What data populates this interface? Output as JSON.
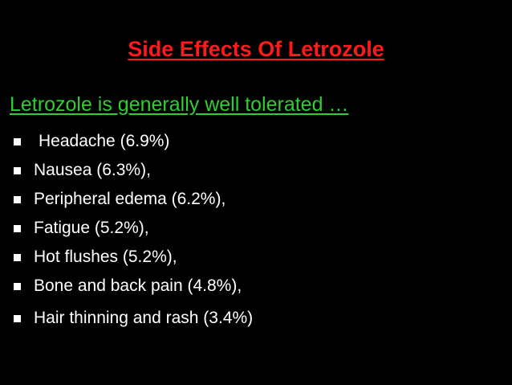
{
  "slide": {
    "title": "Side Effects Of Letrozole",
    "subtitle": "Letrozole is generally well tolerated …",
    "items": [
      "Headache (6.9%)",
      "Nausea (6.3%),",
      "Peripheral edema (6.2%),",
      "Fatigue (5.2%),",
      "Hot flushes (5.2%),",
      "Bone and back pain (4.8%),",
      "Hair thinning and rash (3.4%)"
    ]
  }
}
